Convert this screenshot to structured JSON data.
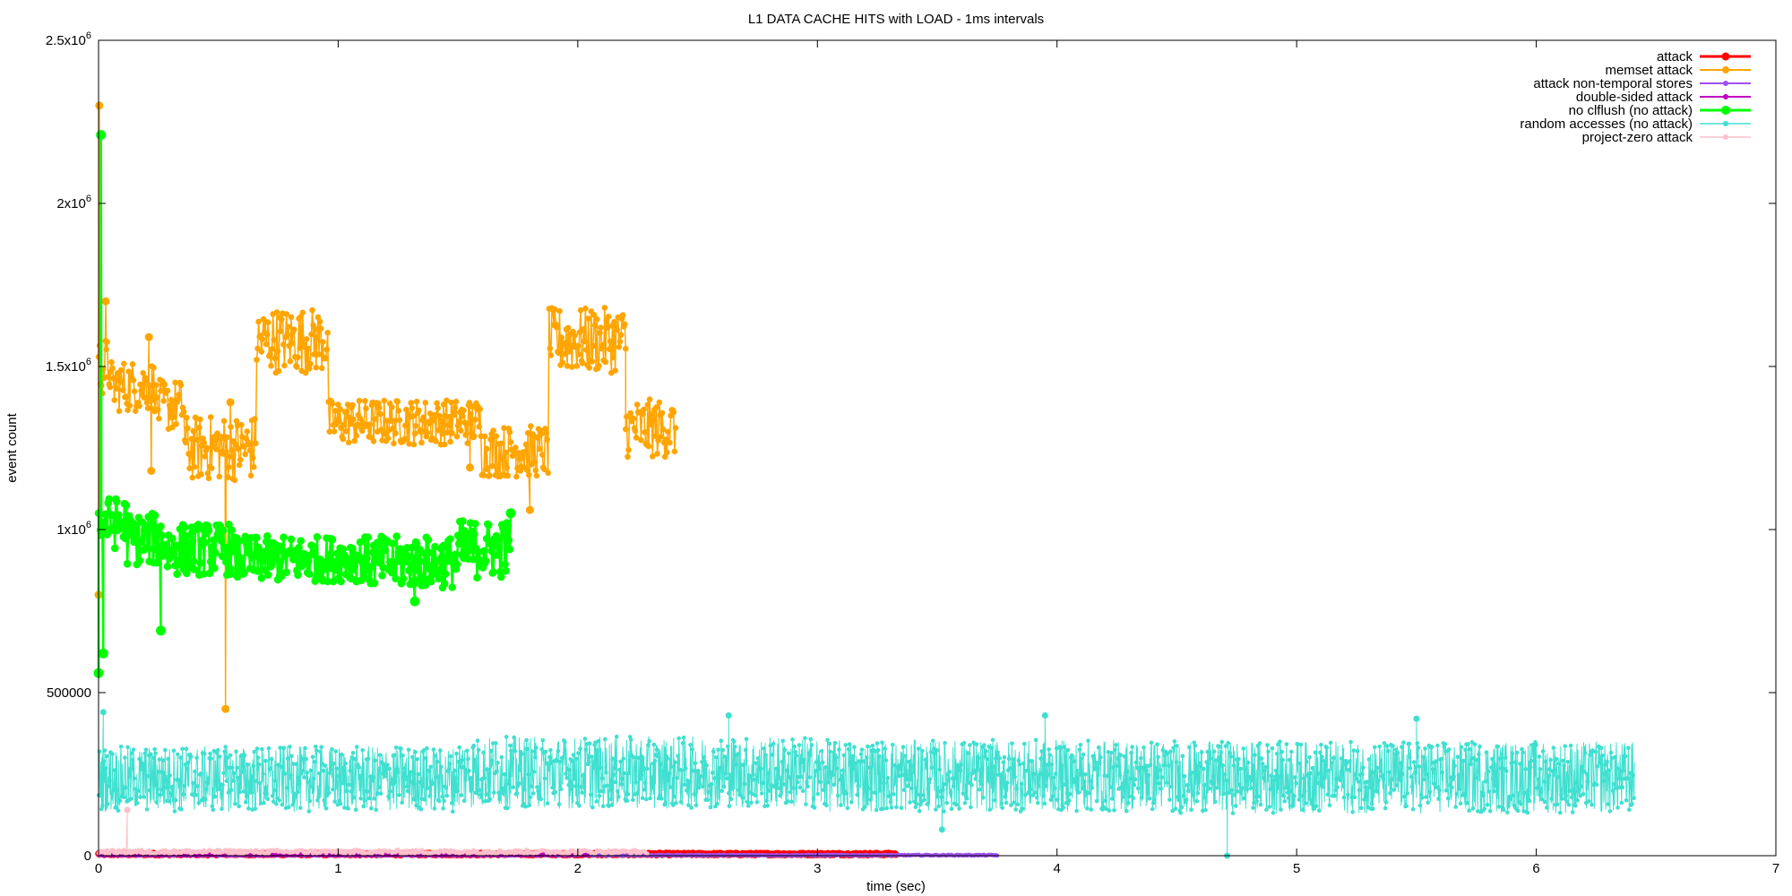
{
  "chart_data": {
    "type": "line",
    "title": "L1 DATA CACHE HITS with LOAD - 1ms intervals",
    "xlabel": "time (sec)",
    "ylabel": "event count",
    "xlim": [
      0,
      7
    ],
    "ylim": [
      0,
      2500000
    ],
    "grid": false,
    "legend_position": "top-right",
    "x_ticks": [
      {
        "value": 0,
        "label": "0"
      },
      {
        "value": 1,
        "label": "1"
      },
      {
        "value": 2,
        "label": "2"
      },
      {
        "value": 3,
        "label": "3"
      },
      {
        "value": 4,
        "label": "4"
      },
      {
        "value": 5,
        "label": "5"
      },
      {
        "value": 6,
        "label": "6"
      },
      {
        "value": 7,
        "label": "7"
      }
    ],
    "y_ticks": [
      {
        "value": 0,
        "label": "0",
        "sup": ""
      },
      {
        "value": 500000,
        "label": "500000",
        "sup": ""
      },
      {
        "value": 1000000,
        "label": "1x10",
        "sup": "6"
      },
      {
        "value": 1500000,
        "label": "1.5x10",
        "sup": "6"
      },
      {
        "value": 2000000,
        "label": "2x10",
        "sup": "6"
      },
      {
        "value": 2500000,
        "label": "2.5x10",
        "sup": "6"
      }
    ],
    "series": [
      {
        "name": "attack",
        "color": "#ff0000",
        "marker_size": 6,
        "line_width": 2.5,
        "segments": [
          {
            "x0": 0,
            "x1": 3.33,
            "mean": 5000,
            "amp": 3000,
            "dx": 0.004
          }
        ],
        "spikes": []
      },
      {
        "name": "memset attack",
        "color": "#ffa500",
        "marker_size": 5,
        "line_width": 1.5,
        "segments": [
          {
            "x0": 0.0,
            "x1": 0.05,
            "mean": 1500000,
            "amp": 90000,
            "dx": 0.004
          },
          {
            "x0": 0.05,
            "x1": 0.24,
            "mean": 1440000,
            "amp": 80000,
            "dx": 0.004
          },
          {
            "x0": 0.24,
            "x1": 0.36,
            "mean": 1380000,
            "amp": 80000,
            "dx": 0.004
          },
          {
            "x0": 0.36,
            "x1": 0.66,
            "mean": 1250000,
            "amp": 100000,
            "dx": 0.004
          },
          {
            "x0": 0.66,
            "x1": 0.96,
            "mean": 1580000,
            "amp": 100000,
            "dx": 0.004
          },
          {
            "x0": 0.96,
            "x1": 1.6,
            "mean": 1330000,
            "amp": 70000,
            "dx": 0.004
          },
          {
            "x0": 1.6,
            "x1": 1.88,
            "mean": 1240000,
            "amp": 80000,
            "dx": 0.004
          },
          {
            "x0": 1.88,
            "x1": 2.2,
            "mean": 1580000,
            "amp": 100000,
            "dx": 0.004
          },
          {
            "x0": 2.2,
            "x1": 2.41,
            "mean": 1310000,
            "amp": 90000,
            "dx": 0.004
          }
        ],
        "spikes": [
          {
            "x": 0.003,
            "y": 2300000
          },
          {
            "x": 0.0,
            "y": 800000
          },
          {
            "x": 0.03,
            "y": 1700000
          },
          {
            "x": 0.21,
            "y": 1590000
          },
          {
            "x": 0.22,
            "y": 1180000
          },
          {
            "x": 0.53,
            "y": 450000
          },
          {
            "x": 0.55,
            "y": 1390000
          },
          {
            "x": 1.55,
            "y": 1190000
          },
          {
            "x": 1.8,
            "y": 1060000
          }
        ]
      },
      {
        "name": "attack non-temporal stores",
        "color": "#a050f0",
        "marker_size": 3,
        "line_width": 1.5,
        "segments": [
          {
            "x0": 0,
            "x1": 3.75,
            "mean": 1500,
            "amp": 1500,
            "dx": 0.005
          }
        ],
        "spikes": []
      },
      {
        "name": "double-sided attack",
        "color": "#c000c0",
        "marker_size": 3,
        "line_width": 1.5,
        "segments": [
          {
            "x0": 0,
            "x1": 2.04,
            "mean": 3000,
            "amp": 2500,
            "dx": 0.005
          }
        ],
        "spikes": []
      },
      {
        "name": "no clflush (no attack)",
        "color": "#00ff00",
        "marker_size": 7,
        "line_width": 2.5,
        "segments": [
          {
            "x0": 0.0,
            "x1": 0.12,
            "mean": 1020000,
            "amp": 80000,
            "dx": 0.004
          },
          {
            "x0": 0.12,
            "x1": 0.28,
            "mean": 970000,
            "amp": 80000,
            "dx": 0.004
          },
          {
            "x0": 0.28,
            "x1": 0.56,
            "mean": 940000,
            "amp": 80000,
            "dx": 0.004
          },
          {
            "x0": 0.56,
            "x1": 1.12,
            "mean": 910000,
            "amp": 70000,
            "dx": 0.004
          },
          {
            "x0": 1.12,
            "x1": 1.5,
            "mean": 900000,
            "amp": 80000,
            "dx": 0.004
          },
          {
            "x0": 1.5,
            "x1": 1.72,
            "mean": 940000,
            "amp": 90000,
            "dx": 0.004
          }
        ],
        "spikes": [
          {
            "x": 0.01,
            "y": 2210000
          },
          {
            "x": 0.0,
            "y": 560000
          },
          {
            "x": 0.02,
            "y": 620000
          },
          {
            "x": 0.26,
            "y": 690000
          },
          {
            "x": 1.32,
            "y": 780000
          },
          {
            "x": 1.72,
            "y": 1050000
          }
        ]
      },
      {
        "name": "random accesses (no attack)",
        "color": "#40e0d0",
        "marker_size": 3,
        "line_width": 1,
        "segments": [
          {
            "x0": 0.0,
            "x1": 1.5,
            "mean": 235000,
            "amp": 100000,
            "dx": 0.002
          },
          {
            "x0": 1.5,
            "x1": 3.0,
            "mean": 255000,
            "amp": 110000,
            "dx": 0.002
          },
          {
            "x0": 3.0,
            "x1": 4.5,
            "mean": 245000,
            "amp": 110000,
            "dx": 0.002
          },
          {
            "x0": 4.5,
            "x1": 6.41,
            "mean": 240000,
            "amp": 110000,
            "dx": 0.002
          }
        ],
        "spikes": [
          {
            "x": 0.02,
            "y": 440000
          },
          {
            "x": 2.63,
            "y": 430000
          },
          {
            "x": 3.95,
            "y": 430000
          },
          {
            "x": 5.5,
            "y": 420000
          },
          {
            "x": 4.71,
            "y": 0
          },
          {
            "x": 3.52,
            "y": 80000
          }
        ]
      },
      {
        "name": "project-zero attack",
        "color": "#ffc0cb",
        "marker_size": 3,
        "line_width": 1,
        "segments": [
          {
            "x0": 0,
            "x1": 2.29,
            "mean": 12000,
            "amp": 6000,
            "dx": 0.005
          }
        ],
        "spikes": [
          {
            "x": 0.12,
            "y": 140000
          }
        ]
      }
    ]
  }
}
